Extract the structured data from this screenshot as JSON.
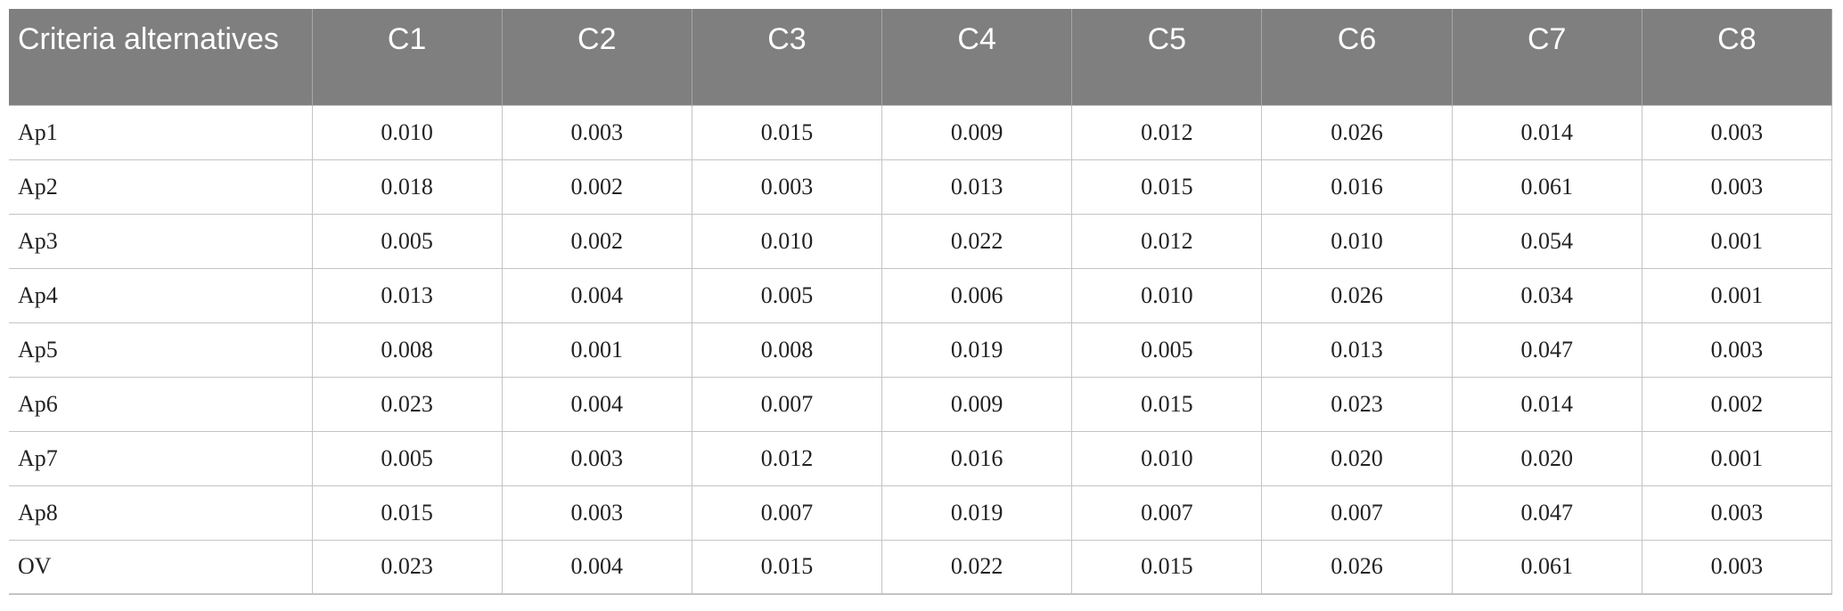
{
  "table": {
    "header": [
      "Criteria alternatives",
      "C1",
      "C2",
      "C3",
      "C4",
      "C5",
      "C6",
      "C7",
      "C8"
    ],
    "rows": [
      [
        "Ap1",
        "0.010",
        "0.003",
        "0.015",
        "0.009",
        "0.012",
        "0.026",
        "0.014",
        "0.003"
      ],
      [
        "Ap2",
        "0.018",
        "0.002",
        "0.003",
        "0.013",
        "0.015",
        "0.016",
        "0.061",
        "0.003"
      ],
      [
        "Ap3",
        "0.005",
        "0.002",
        "0.010",
        "0.022",
        "0.012",
        "0.010",
        "0.054",
        "0.001"
      ],
      [
        "Ap4",
        "0.013",
        "0.004",
        "0.005",
        "0.006",
        "0.010",
        "0.026",
        "0.034",
        "0.001"
      ],
      [
        "Ap5",
        "0.008",
        "0.001",
        "0.008",
        "0.019",
        "0.005",
        "0.013",
        "0.047",
        "0.003"
      ],
      [
        "Ap6",
        "0.023",
        "0.004",
        "0.007",
        "0.009",
        "0.015",
        "0.023",
        "0.014",
        "0.002"
      ],
      [
        "Ap7",
        "0.005",
        "0.003",
        "0.012",
        "0.016",
        "0.010",
        "0.020",
        "0.020",
        "0.001"
      ],
      [
        "Ap8",
        "0.015",
        "0.003",
        "0.007",
        "0.019",
        "0.007",
        "0.007",
        "0.047",
        "0.003"
      ],
      [
        "OV",
        "0.023",
        "0.004",
        "0.015",
        "0.022",
        "0.015",
        "0.026",
        "0.061",
        "0.003"
      ]
    ]
  }
}
